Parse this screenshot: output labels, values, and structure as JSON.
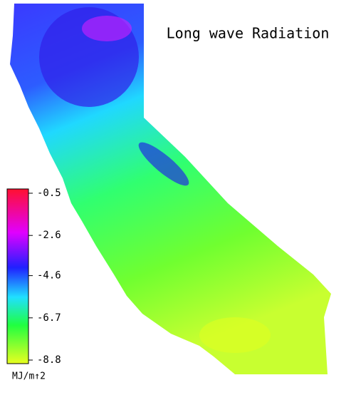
{
  "title": "Long wave Radiation",
  "colorbar": {
    "lim": [
      -8.8,
      -0.5
    ],
    "ticks": [
      -0.5,
      -2.6,
      -4.6,
      -6.7,
      -8.8
    ],
    "label": "MJ/m↑2"
  }
}
